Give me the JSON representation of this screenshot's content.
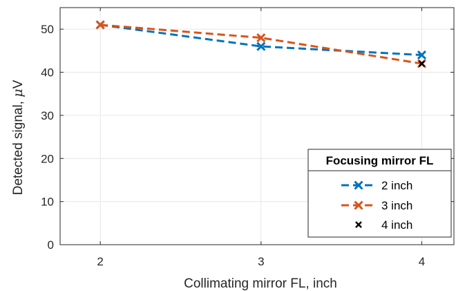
{
  "chart_data": {
    "type": "line",
    "title": "",
    "xlabel": "Collimating mirror FL, inch",
    "ylabel_prefix": "Detected signal, ",
    "ylabel_symbol": "μ",
    "ylabel_unit": "V",
    "xlim": [
      1.75,
      4.2
    ],
    "ylim": [
      0,
      55
    ],
    "x_ticks": [
      2,
      3,
      4
    ],
    "y_ticks": [
      0,
      10,
      20,
      30,
      40,
      50
    ],
    "grid": true,
    "x": [
      2,
      3,
      4
    ],
    "series": [
      {
        "name": "2 inch",
        "x": [
          2,
          3,
          4
        ],
        "values": [
          51,
          46,
          44
        ],
        "color": "#0072BD",
        "line": "dashed",
        "marker": "x"
      },
      {
        "name": "3 inch",
        "x": [
          2,
          3,
          4
        ],
        "values": [
          51,
          48,
          42
        ],
        "color": "#D95319",
        "line": "dashed",
        "marker": "x"
      },
      {
        "name": "4 inch",
        "x": [
          4
        ],
        "values": [
          42
        ],
        "color": "#000000",
        "line": "none",
        "marker": "x"
      }
    ],
    "legend": {
      "title": "Focusing mirror FL",
      "placement": "bottom-right"
    }
  }
}
